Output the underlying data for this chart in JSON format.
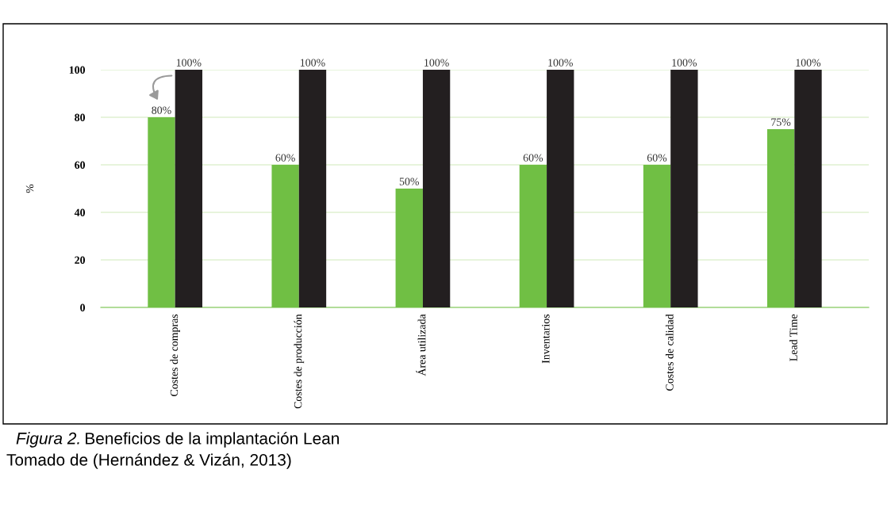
{
  "chart_data": {
    "type": "bar",
    "categories": [
      "Costes de compras",
      "Costes de producción",
      "Área utilizada",
      "Inventarios",
      "Costes de calidad",
      "Lead Time"
    ],
    "series": [
      {
        "color": "#70bf44",
        "values": [
          80,
          60,
          50,
          60,
          60,
          75
        ],
        "value_labels": [
          "80%",
          "60%",
          "50%",
          "60%",
          "60%",
          "75%"
        ]
      },
      {
        "color": "#231f20",
        "values": [
          100,
          100,
          100,
          100,
          100,
          100
        ],
        "value_labels": [
          "100%",
          "100%",
          "100%",
          "100%",
          "100%",
          "100%"
        ]
      }
    ],
    "ylabel": "%",
    "ylim": [
      0,
      100
    ],
    "yticks": [
      0,
      20,
      40,
      60,
      80,
      100
    ],
    "grid": "y",
    "annotations": [
      "Figura 2.",
      "Beneficios de la implantación Lean",
      "Tomado de (Hernández & Vizán, 2013)"
    ]
  }
}
